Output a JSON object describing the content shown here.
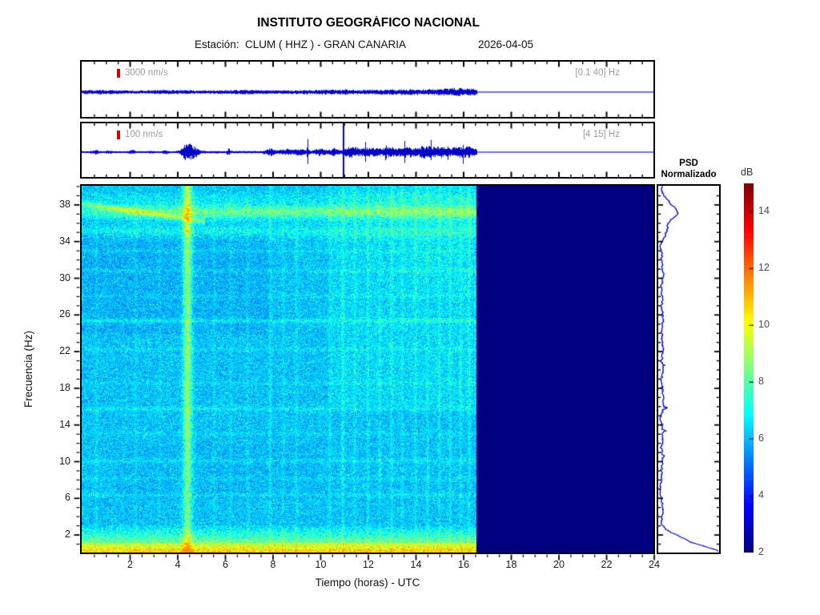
{
  "header": {
    "title": "INSTITUTO GEOGRÁFICO NACIONAL",
    "station_line": "Estación:  CLUM ( HHZ ) - GRAN CANARIA",
    "date": "2026-04-05"
  },
  "traces": [
    {
      "scale_label": "3000 nm/s",
      "band_label": "[0.1 40] Hz"
    },
    {
      "scale_label": "100 nm/s",
      "band_label": "[4 15] Hz"
    }
  ],
  "spectrogram": {
    "xlabel": "Tiempo (horas) - UTC",
    "ylabel": "Frecuencia  (Hz)",
    "xticks": [
      2,
      4,
      6,
      8,
      10,
      12,
      14,
      16,
      18,
      20,
      22,
      24
    ],
    "yticks": [
      2,
      6,
      10,
      14,
      18,
      22,
      26,
      30,
      34,
      38
    ]
  },
  "psd": {
    "title_line1": "PSD",
    "title_line2": "Normalizado"
  },
  "colorbar": {
    "label": "dB",
    "ticks": [
      2,
      4,
      6,
      8,
      10,
      12,
      14
    ],
    "range": [
      2,
      15
    ]
  },
  "colors": {
    "trace_blue": "#0000C8",
    "marker_red": "#d40000",
    "label_gray": "#9c9c9c",
    "no_data_navy": "#000080"
  },
  "chart_data": {
    "type": "heatmap",
    "title": "INSTITUTO GEOGRÁFICO NACIONAL",
    "station": "CLUM",
    "channel": "HHZ",
    "region": "GRAN CANARIA",
    "date": "2026-04-05",
    "x": {
      "label": "Tiempo (horas) - UTC",
      "range": [
        0,
        24
      ],
      "ticks": [
        2,
        4,
        6,
        8,
        10,
        12,
        14,
        16,
        18,
        20,
        22,
        24
      ]
    },
    "y": {
      "label": "Frecuencia (Hz)",
      "range": [
        0,
        40
      ],
      "ticks": [
        2,
        6,
        10,
        14,
        18,
        22,
        26,
        30,
        34,
        38
      ]
    },
    "colorbar": {
      "label": "dB",
      "range": [
        2,
        15
      ],
      "ticks": [
        2,
        4,
        6,
        8,
        10,
        12,
        14
      ]
    },
    "data_end_hours": 16.6,
    "no_data_value_db": 2,
    "traces": [
      {
        "scale": "3000 nm/s",
        "filter_band": "[0.1 40] Hz",
        "description": "continuous moderate amplitude 0-16.6h, slightly larger 13.5-16.5h, flat after 16.6h"
      },
      {
        "scale": "100 nm/s",
        "filter_band": "[4 15] Hz",
        "description": "quiet 0-4h, burst near 4.5h, spike near 9.5h, full-height spike at 11h, sustained activity 11-16.6h, flat after"
      }
    ],
    "spectrogram_features": [
      "background 5.5-7 dB blue-cyan noise from 0 to 16.6h",
      "microseism band below ~2 Hz at 9-11 dB (yellow-orange)",
      "bright band near 37 Hz (~8-9 dB) across record",
      "vertical event column at ~4.5h (~8-10 dB) full bandwidth",
      "faint vertical streaks 8-16.5h, faint horizontal lines at ~25.4, 15.8, 10 Hz",
      "solid 2 dB navy (no data) from 16.6h to 24h"
    ],
    "psd_panel": {
      "title": "PSD Normalizado",
      "description": "normalized PSD vs frequency; near zero for most of band, bump at ~37 Hz, maximum (full scale) below ~2 Hz"
    }
  }
}
